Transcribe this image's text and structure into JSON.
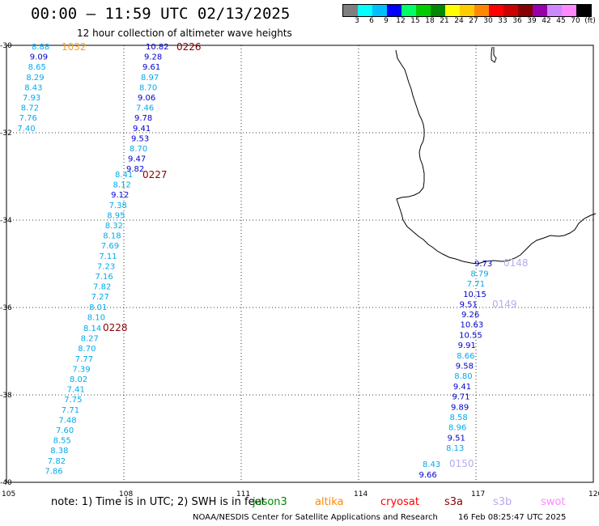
{
  "title": "00:00 – 11:59 UTC 02/13/2025",
  "subtitle": "12 hour collection of altimeter wave heights",
  "color_scale": {
    "colors": [
      "#7f7f7f",
      "#00ffff",
      "#00bfff",
      "#0000ff",
      "#00ff66",
      "#00cc00",
      "#008800",
      "#ffff00",
      "#ffcc00",
      "#ff8800",
      "#ff0000",
      "#cc0000",
      "#880000",
      "#9900aa",
      "#cc88ff",
      "#ff88ff",
      "#000000"
    ],
    "labels": [
      "3",
      "6",
      "9",
      "12",
      "15",
      "18",
      "21",
      "24",
      "27",
      "30",
      "33",
      "36",
      "39",
      "42",
      "45",
      "70",
      "(ft)"
    ]
  },
  "map": {
    "lon_ticks": [
      "105",
      "108",
      "111",
      "114",
      "117",
      "120"
    ],
    "lat_ticks": [
      "-30",
      "-32",
      "-34",
      "-36",
      "-38",
      "-40"
    ],
    "lon_range": [
      105,
      120
    ],
    "lat_range": [
      -40,
      -30
    ]
  },
  "tracks": [
    {
      "pass_label": "1032",
      "label_color": "#f0a020",
      "points": [
        {
          "v": "8.88",
          "c": "#00aaee"
        },
        {
          "v": "9.09",
          "c": "#0000cc"
        },
        {
          "v": "8.65",
          "c": "#00aaee"
        },
        {
          "v": "8.29",
          "c": "#00aaee"
        },
        {
          "v": "8.43",
          "c": "#00aaee"
        },
        {
          "v": "7.93",
          "c": "#00aaee"
        },
        {
          "v": "8.72",
          "c": "#00aaee"
        },
        {
          "v": "7.76",
          "c": "#00aaee"
        },
        {
          "v": "7.40",
          "c": "#00aaee"
        }
      ]
    },
    {
      "pass_label": "0226",
      "label_color": "#880000",
      "points": [
        {
          "v": "10.82",
          "c": "#0000cc"
        },
        {
          "v": "9.28",
          "c": "#0000cc"
        },
        {
          "v": "9.61",
          "c": "#0000cc"
        },
        {
          "v": "8.97",
          "c": "#00aaee"
        },
        {
          "v": "8.70",
          "c": "#00aaee"
        },
        {
          "v": "9.06",
          "c": "#0000cc"
        },
        {
          "v": "7.46",
          "c": "#00aaee"
        },
        {
          "v": "9.78",
          "c": "#0000cc"
        },
        {
          "v": "9.41",
          "c": "#0000cc"
        },
        {
          "v": "9.53",
          "c": "#0000cc"
        },
        {
          "v": "8.70",
          "c": "#00aaee"
        },
        {
          "v": "9.47",
          "c": "#0000cc"
        },
        {
          "v": "9.82",
          "c": "#0000cc"
        }
      ]
    },
    {
      "pass_label": "0227",
      "label_color": "#880000",
      "points": [
        {
          "v": "8.41",
          "c": "#00aaee"
        },
        {
          "v": "8.12",
          "c": "#00aaee"
        },
        {
          "v": "9.12",
          "c": "#0000cc"
        },
        {
          "v": "7.38",
          "c": "#00aaee"
        },
        {
          "v": "8.95",
          "c": "#00aaee"
        },
        {
          "v": "8.32",
          "c": "#00aaee"
        },
        {
          "v": "8.18",
          "c": "#00aaee"
        },
        {
          "v": "7.69",
          "c": "#00aaee"
        },
        {
          "v": "7.11",
          "c": "#00aaee"
        },
        {
          "v": "7.23",
          "c": "#00aaee"
        },
        {
          "v": "7.16",
          "c": "#00aaee"
        },
        {
          "v": "7.82",
          "c": "#00aaee"
        },
        {
          "v": "7.27",
          "c": "#00aaee"
        },
        {
          "v": "8.01",
          "c": "#00aaee"
        },
        {
          "v": "8.10",
          "c": "#00aaee"
        }
      ]
    },
    {
      "pass_label": "0228",
      "label_color": "#880000",
      "points": [
        {
          "v": "8.14",
          "c": "#00aaee"
        },
        {
          "v": "8.27",
          "c": "#00aaee"
        },
        {
          "v": "8.70",
          "c": "#00aaee"
        },
        {
          "v": "7.77",
          "c": "#00aaee"
        },
        {
          "v": "7.39",
          "c": "#00aaee"
        },
        {
          "v": "8.02",
          "c": "#00aaee"
        },
        {
          "v": "7.41",
          "c": "#00aaee"
        },
        {
          "v": "7.75",
          "c": "#00aaee"
        },
        {
          "v": "7.71",
          "c": "#00aaee"
        },
        {
          "v": "7.48",
          "c": "#00aaee"
        },
        {
          "v": "7.60",
          "c": "#00aaee"
        },
        {
          "v": "8.55",
          "c": "#00aaee"
        },
        {
          "v": "8.38",
          "c": "#00aaee"
        },
        {
          "v": "7.82",
          "c": "#00aaee"
        },
        {
          "v": "7.86",
          "c": "#00aaee"
        }
      ]
    },
    {
      "pass_label": "0148",
      "label_color": "#bbaaee",
      "points": [
        {
          "v": "9.73",
          "c": "#0000cc"
        },
        {
          "v": "8.79",
          "c": "#00aaee"
        },
        {
          "v": "7.71",
          "c": "#00aaee"
        },
        {
          "v": "10.15",
          "c": "#0000cc"
        },
        {
          "v": "9.51",
          "c": "#0000cc"
        }
      ]
    },
    {
      "pass_label": "0149",
      "label_color": "#bbaaee",
      "points": [
        {
          "v": "9.26",
          "c": "#0000cc"
        },
        {
          "v": "10.63",
          "c": "#0000cc"
        },
        {
          "v": "10.55",
          "c": "#0000cc"
        },
        {
          "v": "9.91",
          "c": "#0000cc"
        },
        {
          "v": "8.66",
          "c": "#00aaee"
        },
        {
          "v": "9.58",
          "c": "#0000cc"
        },
        {
          "v": "8.80",
          "c": "#00aaee"
        },
        {
          "v": "9.41",
          "c": "#0000cc"
        },
        {
          "v": "9.71",
          "c": "#0000cc"
        },
        {
          "v": "9.89",
          "c": "#0000cc"
        },
        {
          "v": "8.58",
          "c": "#00aaee"
        },
        {
          "v": "8.96",
          "c": "#00aaee"
        },
        {
          "v": "9.51",
          "c": "#0000cc"
        },
        {
          "v": "8.13",
          "c": "#00aaee"
        }
      ]
    },
    {
      "pass_label": "0150",
      "label_color": "#bbaaee",
      "points": [
        {
          "v": "8.43",
          "c": "#00aaee"
        },
        {
          "v": "9.66",
          "c": "#0000cc"
        }
      ]
    }
  ],
  "footer": {
    "note": "note:  1) Time is in UTC; 2) SWH is in feet",
    "missions": [
      {
        "name": "jason3",
        "color": "#008800"
      },
      {
        "name": "altika",
        "color": "#ff8800"
      },
      {
        "name": "cryosat",
        "color": "#ff0000"
      },
      {
        "name": "s3a",
        "color": "#880000"
      },
      {
        "name": "s3b",
        "color": "#bbaaee"
      },
      {
        "name": "swot",
        "color": "#ff88ff"
      }
    ],
    "credit": "NOAA/NESDIS Center for Satellite Applications and Research",
    "timestamp": "16 Feb 08:25:47 UTC 2025"
  }
}
